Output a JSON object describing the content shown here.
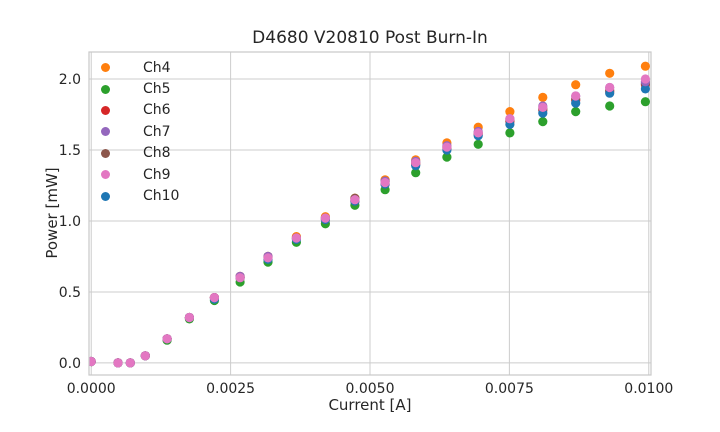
{
  "chart_data": {
    "type": "scatter",
    "title": "D4680 V20810 Post Burn-In",
    "xlabel": "Current [A]",
    "ylabel": "Power [mW]",
    "x_ticks": [
      0.0,
      0.0025,
      0.005,
      0.0075,
      0.01
    ],
    "x_tick_labels": [
      "0.0000",
      "0.0025",
      "0.0050",
      "0.0075",
      "0.0100"
    ],
    "y_ticks": [
      0.0,
      0.5,
      1.0,
      1.5,
      2.0
    ],
    "y_tick_labels": [
      "0.0",
      "0.5",
      "1.0",
      "1.5",
      "2.0"
    ],
    "xlim": [
      -4e-05,
      0.01004
    ],
    "ylim": [
      -0.085,
      2.19
    ],
    "grid": true,
    "legend_position": "upper left",
    "grid_color": "#cccccc",
    "spine_color": "#c8c8c8",
    "text_color": "#262626",
    "marker_radius": 4.6,
    "x": [
      0.0,
      0.00048,
      0.0007,
      0.00097,
      0.00136,
      0.00176,
      0.00221,
      0.00267,
      0.00317,
      0.00368,
      0.0042,
      0.00473,
      0.00527,
      0.00582,
      0.00638,
      0.00694,
      0.00751,
      0.0081,
      0.00869,
      0.0093,
      0.00994
    ],
    "series": [
      {
        "name": "Ch4",
        "color": "#ff7f0e",
        "values": [
          0.01,
          0.0,
          0.0,
          0.05,
          0.17,
          0.32,
          0.46,
          0.61,
          0.75,
          0.89,
          1.03,
          1.16,
          1.29,
          1.43,
          1.55,
          1.66,
          1.77,
          1.87,
          1.96,
          2.04,
          2.09
        ]
      },
      {
        "name": "Ch5",
        "color": "#2ca02c",
        "values": [
          0.01,
          0.0,
          0.0,
          0.05,
          0.16,
          0.31,
          0.44,
          0.57,
          0.71,
          0.85,
          0.98,
          1.11,
          1.22,
          1.34,
          1.45,
          1.54,
          1.62,
          1.7,
          1.77,
          1.81,
          1.84
        ]
      },
      {
        "name": "Ch6",
        "color": "#d62728",
        "values": [
          0.01,
          0.0,
          0.0,
          0.05,
          0.17,
          0.32,
          0.46,
          0.6,
          0.74,
          0.88,
          1.01,
          1.14,
          1.26,
          1.4,
          1.51,
          1.61,
          1.7,
          1.78,
          1.85,
          1.91,
          1.96
        ]
      },
      {
        "name": "Ch7",
        "color": "#9467bd",
        "values": [
          0.01,
          0.0,
          0.0,
          0.05,
          0.17,
          0.32,
          0.46,
          0.61,
          0.75,
          0.88,
          1.02,
          1.15,
          1.28,
          1.42,
          1.53,
          1.63,
          1.72,
          1.81,
          1.88,
          1.94,
          1.98
        ]
      },
      {
        "name": "Ch8",
        "color": "#8c564b",
        "values": [
          0.01,
          0.0,
          0.0,
          0.05,
          0.17,
          0.32,
          0.46,
          0.6,
          0.74,
          0.88,
          1.02,
          1.16,
          1.28,
          1.41,
          1.52,
          1.62,
          1.71,
          1.79,
          1.86,
          1.92,
          1.97
        ]
      },
      {
        "name": "Ch9",
        "color": "#e377c2",
        "values": [
          0.01,
          0.0,
          0.0,
          0.05,
          0.17,
          0.32,
          0.46,
          0.6,
          0.74,
          0.88,
          1.02,
          1.15,
          1.27,
          1.41,
          1.52,
          1.62,
          1.72,
          1.8,
          1.88,
          1.94,
          2.0
        ]
      },
      {
        "name": "Ch10",
        "color": "#1f77b4",
        "values": [
          0.01,
          0.0,
          0.0,
          0.05,
          0.17,
          0.32,
          0.45,
          0.6,
          0.73,
          0.87,
          1.01,
          1.14,
          1.26,
          1.39,
          1.5,
          1.6,
          1.68,
          1.76,
          1.83,
          1.9,
          1.93
        ]
      }
    ],
    "draw_order": [
      "Ch4",
      "Ch5",
      "Ch6",
      "Ch8",
      "Ch10",
      "Ch7",
      "Ch9"
    ]
  }
}
